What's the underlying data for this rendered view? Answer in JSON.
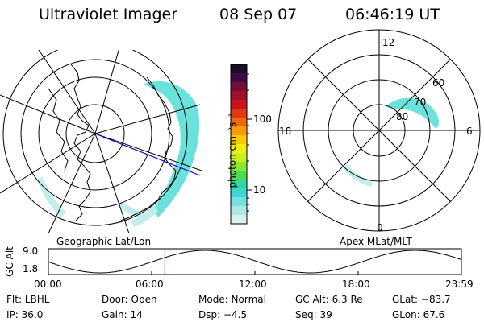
{
  "header": {
    "instrument": "Ultraviolet Imager",
    "date": "08 Sep 07",
    "time": "06:46:19 UT"
  },
  "colorbar": {
    "label": "photon cm⁻²s⁻¹",
    "ticks": [
      "100",
      "10"
    ],
    "colors": [
      "#1a0d26",
      "#400a40",
      "#70103a",
      "#a0102a",
      "#c8141e",
      "#e03814",
      "#f0680e",
      "#f89a0a",
      "#fcc808",
      "#f0ec10",
      "#c8f020",
      "#8ae830",
      "#4adc50",
      "#30d8a0",
      "#3ad8d0",
      "#78e0e0",
      "#b0e8e8",
      "#d8f0f0"
    ],
    "aurora_color": "#40e0d0"
  },
  "maps": {
    "geographic_label": "Geographic Lat/Lon",
    "apex_label": "Apex MLat/MLT",
    "mlt_labels": {
      "top": "12",
      "left": "18",
      "right": "6",
      "bottom": "0"
    },
    "mlat_labels": [
      "60",
      "70",
      "80"
    ]
  },
  "altitude_plot": {
    "ylabel": "GC Alt",
    "yticks": [
      "9.0",
      "1.8"
    ],
    "xticks": [
      "00:00",
      "06:00",
      "12:00",
      "18:00",
      "23:59"
    ],
    "current_hour": 6.77,
    "marker_color": "#d00000"
  },
  "info": {
    "filter": "Flt: LBHL",
    "door": "Door: Open",
    "mode": "Mode: Normal",
    "gc_alt": "GC Alt: 6.3 Re",
    "glat": "GLat: −83.7",
    "ip": "IP: 36.0",
    "gain": "Gain: 14",
    "dsp": "Dsp:   −4.5",
    "seq": "Seq: 39",
    "glon": "GLon:  67.6"
  }
}
